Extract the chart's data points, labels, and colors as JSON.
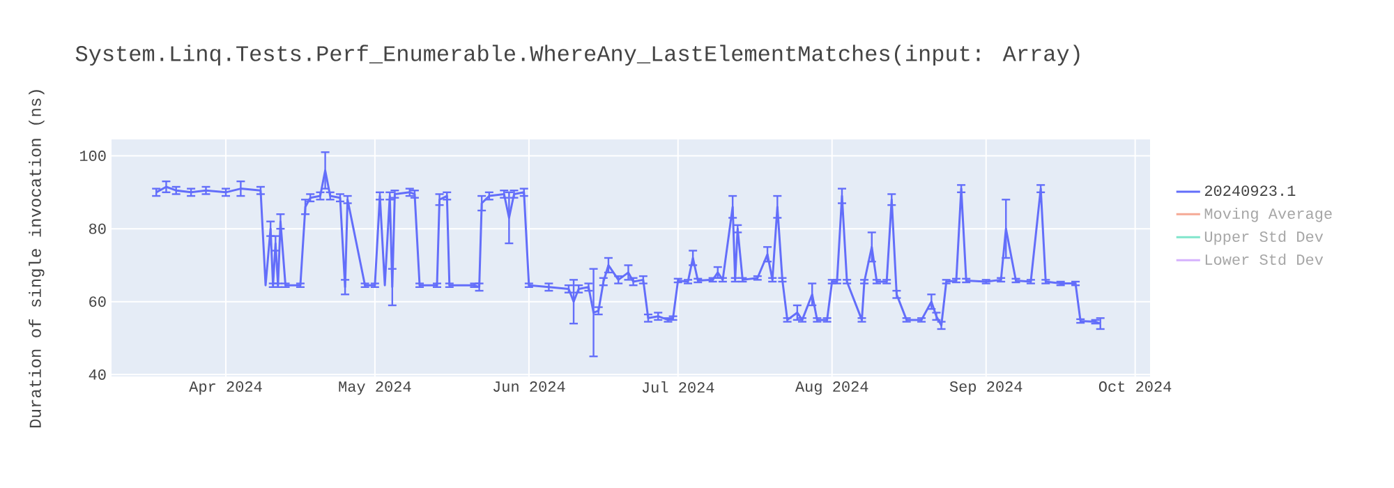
{
  "chart_data": {
    "type": "line",
    "title": "System.Linq.Tests.Perf_Enumerable.WhereAny_LastElementMatches(input: Array)",
    "ylabel": "Duration of single invocation (ns)",
    "x": [
      "2024-03-18",
      "2024-03-20",
      "2024-03-22",
      "2024-03-25",
      "2024-03-28",
      "2024-04-01",
      "2024-04-04",
      "2024-04-08",
      "2024-04-09",
      "2024-04-10",
      "2024-04-10T12:00",
      "2024-04-11",
      "2024-04-11T12:00",
      "2024-04-12",
      "2024-04-13",
      "2024-04-16",
      "2024-04-17",
      "2024-04-18",
      "2024-04-20",
      "2024-04-21",
      "2024-04-22",
      "2024-04-24",
      "2024-04-25",
      "2024-04-25T12:00",
      "2024-04-29",
      "2024-05-01",
      "2024-05-02",
      "2024-05-03",
      "2024-05-04",
      "2024-05-04T12:00",
      "2024-05-05",
      "2024-05-08",
      "2024-05-09",
      "2024-05-10",
      "2024-05-13T12:00",
      "2024-05-14",
      "2024-05-15T12:00",
      "2024-05-16",
      "2024-05-21",
      "2024-05-22",
      "2024-05-22T12:00",
      "2024-05-24",
      "2024-05-27",
      "2024-05-28",
      "2024-05-29",
      "2024-05-31",
      "2024-06-01",
      "2024-06-05",
      "2024-06-09",
      "2024-06-10",
      "2024-06-11",
      "2024-06-13",
      "2024-06-14",
      "2024-06-15",
      "2024-06-16",
      "2024-06-17",
      "2024-06-19",
      "2024-06-21",
      "2024-06-22",
      "2024-06-24",
      "2024-06-25",
      "2024-06-27",
      "2024-06-29",
      "2024-06-30",
      "2024-07-01",
      "2024-07-03",
      "2024-07-04",
      "2024-07-05",
      "2024-07-08",
      "2024-07-09",
      "2024-07-10",
      "2024-07-12",
      "2024-07-12T12:00",
      "2024-07-13",
      "2024-07-14",
      "2024-07-17",
      "2024-07-19",
      "2024-07-20",
      "2024-07-21",
      "2024-07-22",
      "2024-07-23",
      "2024-07-25",
      "2024-07-26",
      "2024-07-28",
      "2024-07-29",
      "2024-07-31",
      "2024-08-01",
      "2024-08-02",
      "2024-08-03",
      "2024-08-04",
      "2024-08-07",
      "2024-08-07T12:00",
      "2024-08-09",
      "2024-08-10",
      "2024-08-12",
      "2024-08-13",
      "2024-08-14",
      "2024-08-16",
      "2024-08-19",
      "2024-08-21",
      "2024-08-22",
      "2024-08-23",
      "2024-08-24",
      "2024-08-26",
      "2024-08-27",
      "2024-08-28",
      "2024-09-01",
      "2024-09-04",
      "2024-09-05",
      "2024-09-07",
      "2024-09-10",
      "2024-09-12",
      "2024-09-13",
      "2024-09-16",
      "2024-09-19",
      "2024-09-20",
      "2024-09-23",
      "2024-09-24"
    ],
    "series": [
      {
        "name": "20240923.1",
        "color": "#636efa",
        "values": [
          90,
          91.5,
          90.5,
          90,
          90.5,
          90,
          91,
          90.5,
          64.5,
          80,
          64.5,
          76,
          64.5,
          82,
          64.5,
          64.5,
          86,
          88.5,
          89,
          96,
          89,
          88.5,
          64,
          88,
          64.5,
          64.5,
          89,
          64.5,
          89,
          64,
          89.5,
          90,
          89.5,
          64.5,
          64.5,
          88,
          89,
          64.5,
          64.5,
          64,
          87,
          89,
          89.5,
          83,
          89.5,
          90,
          64.5,
          64,
          63.5,
          60,
          63.5,
          64,
          57,
          57.5,
          65.5,
          70,
          66,
          68,
          65.5,
          66,
          55.5,
          56,
          55,
          55.5,
          65.8,
          65.5,
          72,
          65.8,
          66,
          68,
          66,
          86,
          66,
          80,
          66,
          66.5,
          73,
          66,
          86,
          66,
          55,
          57,
          55,
          62,
          55,
          55,
          65.5,
          65.5,
          89,
          65.5,
          55,
          65.5,
          75,
          65.5,
          65.5,
          88,
          62,
          55,
          55,
          60,
          56,
          53.5,
          65.5,
          65.8,
          91,
          65.8,
          65.5,
          66,
          80,
          65.8,
          65.5,
          91,
          65.5,
          65,
          65,
          54.7,
          54.5,
          54
        ],
        "errors": [
          1,
          1.5,
          1,
          1,
          1,
          1,
          2,
          1,
          null,
          2,
          0.5,
          2,
          0.5,
          2,
          0.5,
          0.5,
          2,
          1,
          1,
          5,
          1,
          1,
          2,
          1,
          0.5,
          0.5,
          1,
          null,
          1,
          5,
          1,
          1,
          1,
          0.5,
          0.5,
          1.5,
          1,
          0.5,
          0.5,
          1,
          2,
          1,
          1,
          7,
          1,
          1,
          0.5,
          1,
          1,
          6,
          1,
          1,
          12,
          1,
          1,
          2,
          1,
          2,
          1,
          1,
          1,
          1,
          0.5,
          0.5,
          0.5,
          0.5,
          2,
          0.5,
          0.5,
          1.5,
          0.5,
          3,
          0.5,
          1,
          0.5,
          0.5,
          2,
          0.5,
          3,
          0.5,
          0.5,
          2,
          0.5,
          3,
          0.5,
          0.5,
          0.5,
          0.5,
          2,
          0.5,
          0.5,
          0.5,
          4,
          0.5,
          0.5,
          1.5,
          1,
          0.5,
          0.5,
          2,
          1,
          1,
          0.5,
          0.5,
          1,
          0.5,
          0.5,
          0.5,
          8,
          0.5,
          0.5,
          1,
          0.5,
          0.5,
          0.5,
          0.5,
          0.5,
          1.5
        ]
      },
      {
        "name": "Moving Average",
        "color": "#f5a995",
        "values": [
          null,
          null,
          null,
          null,
          null,
          null,
          null,
          null,
          null,
          null,
          null,
          null,
          null,
          null,
          null,
          null,
          null,
          null,
          null,
          null,
          null,
          null,
          null,
          null,
          null,
          null,
          null,
          null,
          null,
          null,
          null,
          null,
          null,
          null,
          null,
          null,
          null,
          null,
          null,
          null,
          null,
          null,
          null,
          null,
          null,
          null,
          null,
          null,
          null,
          null,
          null,
          null,
          null,
          null,
          null,
          null,
          null,
          null,
          null,
          null,
          null,
          null,
          null,
          null,
          null,
          null,
          null,
          null,
          null,
          null,
          null,
          null,
          null,
          null,
          null,
          null,
          null,
          null,
          null,
          null,
          null,
          null,
          null,
          null,
          null,
          null,
          null,
          null,
          null,
          null,
          null,
          null,
          null,
          null,
          null,
          null,
          null,
          null,
          null,
          null,
          null,
          null,
          null,
          null,
          null,
          null,
          null,
          null,
          null,
          null,
          null,
          null,
          null,
          null,
          null,
          null,
          null,
          null
        ]
      },
      {
        "name": "Upper Std Dev",
        "color": "#80e5cb",
        "values": [
          null,
          null,
          null,
          null,
          null,
          null,
          null,
          null,
          null,
          null,
          null,
          null,
          null,
          null,
          null,
          null,
          null,
          null,
          null,
          null,
          null,
          null,
          null,
          null,
          null,
          null,
          null,
          null,
          null,
          null,
          null,
          null,
          null,
          null,
          null,
          null,
          null,
          null,
          null,
          null,
          null,
          null,
          null,
          null,
          null,
          null,
          null,
          null,
          null,
          null,
          null,
          null,
          null,
          null,
          null,
          null,
          null,
          null,
          null,
          null,
          null,
          null,
          null,
          null,
          null,
          null,
          null,
          null,
          null,
          null,
          null,
          null,
          null,
          null,
          null,
          null,
          null,
          null,
          null,
          null,
          null,
          null,
          null,
          null,
          null,
          null,
          null,
          null,
          null,
          null,
          null,
          null,
          null,
          null,
          null,
          null,
          null,
          null,
          null,
          null,
          null,
          null,
          null,
          null,
          null,
          null,
          null,
          null,
          null,
          null,
          null,
          null,
          null,
          null,
          null,
          null,
          null,
          null
        ]
      },
      {
        "name": "Lower Std Dev",
        "color": "#d5b1fd",
        "values": [
          null,
          null,
          null,
          null,
          null,
          null,
          null,
          null,
          null,
          null,
          null,
          null,
          null,
          null,
          null,
          null,
          null,
          null,
          null,
          null,
          null,
          null,
          null,
          null,
          null,
          null,
          null,
          null,
          null,
          null,
          null,
          null,
          null,
          null,
          null,
          null,
          null,
          null,
          null,
          null,
          null,
          null,
          null,
          null,
          null,
          null,
          null,
          null,
          null,
          null,
          null,
          null,
          null,
          null,
          null,
          null,
          null,
          null,
          null,
          null,
          null,
          null,
          null,
          null,
          null,
          null,
          null,
          null,
          null,
          null,
          null,
          null,
          null,
          null,
          null,
          null,
          null,
          null,
          null,
          null,
          null,
          null,
          null,
          null,
          null,
          null,
          null,
          null,
          null,
          null,
          null,
          null,
          null,
          null,
          null,
          null,
          null,
          null,
          null,
          null,
          null,
          null,
          null,
          null,
          null,
          null,
          null,
          null,
          null,
          null,
          null,
          null,
          null,
          null,
          null,
          null,
          null,
          null
        ]
      }
    ],
    "xlim": [
      "2024-03-09",
      "2024-10-04"
    ],
    "xticks": [
      {
        "value": "2024-04-01",
        "label": "Apr 2024"
      },
      {
        "value": "2024-05-01",
        "label": "May 2024"
      },
      {
        "value": "2024-06-01",
        "label": "Jun 2024"
      },
      {
        "value": "2024-07-01",
        "label": "Jul 2024"
      },
      {
        "value": "2024-08-01",
        "label": "Aug 2024"
      },
      {
        "value": "2024-09-01",
        "label": "Sep 2024"
      },
      {
        "value": "2024-10-01",
        "label": "Oct 2024"
      }
    ],
    "ylim": [
      39.5,
      104.5
    ],
    "yticks": [
      40,
      60,
      80,
      100
    ],
    "grid": true,
    "legend": "top right",
    "marker": "none",
    "line_style": "solid"
  }
}
